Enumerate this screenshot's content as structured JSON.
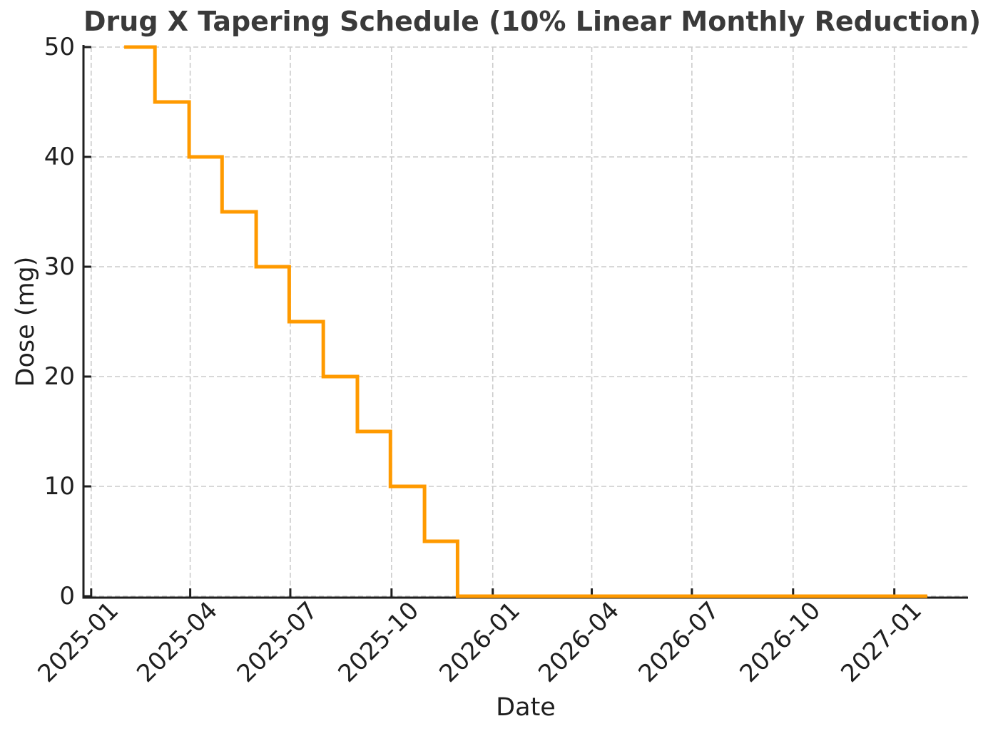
{
  "chart_data": {
    "type": "line",
    "subtype": "step-post",
    "title": "Drug X Tapering Schedule (10% Linear Monthly Reduction)",
    "xlabel": "Date",
    "ylabel": "Dose (mg)",
    "x": [
      "2025-01-31",
      "2025-02-28",
      "2025-03-31",
      "2025-04-30",
      "2025-05-31",
      "2025-06-30",
      "2025-07-31",
      "2025-08-31",
      "2025-09-30",
      "2025-10-31",
      "2025-11-30",
      "2025-12-31",
      "2026-01-31",
      "2026-02-28",
      "2026-03-31",
      "2026-04-30",
      "2026-05-31",
      "2026-06-30",
      "2026-07-31",
      "2026-08-31",
      "2026-09-30",
      "2026-10-31",
      "2026-11-30",
      "2026-12-31",
      "2027-01-31"
    ],
    "y": [
      50,
      45,
      40,
      35,
      30,
      25,
      20,
      15,
      10,
      5,
      0,
      0,
      0,
      0,
      0,
      0,
      0,
      0,
      0,
      0,
      0,
      0,
      0,
      0,
      0
    ],
    "ylim": [
      0,
      50
    ],
    "yticks": [
      0,
      10,
      20,
      30,
      40,
      50
    ],
    "xlim": [
      "2024-12-25",
      "2027-03-09"
    ],
    "xticks": [
      {
        "date": "2025-01-01",
        "label": "2025-01"
      },
      {
        "date": "2025-04-01",
        "label": "2025-04"
      },
      {
        "date": "2025-07-01",
        "label": "2025-07"
      },
      {
        "date": "2025-10-01",
        "label": "2025-10"
      },
      {
        "date": "2026-01-01",
        "label": "2026-01"
      },
      {
        "date": "2026-04-01",
        "label": "2026-04"
      },
      {
        "date": "2026-07-01",
        "label": "2026-07"
      },
      {
        "date": "2026-10-01",
        "label": "2026-10"
      },
      {
        "date": "2027-01-01",
        "label": "2027-01"
      }
    ],
    "grid": {
      "show": true,
      "style": "dashed",
      "color": "#cccccc"
    },
    "legend": {
      "show": false
    },
    "line_color": "#FF9A00",
    "line_width": 5,
    "axis_color": "#1f1f1f",
    "text_color": "#1f1f1f",
    "title_color": "#3a3a3a",
    "background": "#ffffff"
  }
}
